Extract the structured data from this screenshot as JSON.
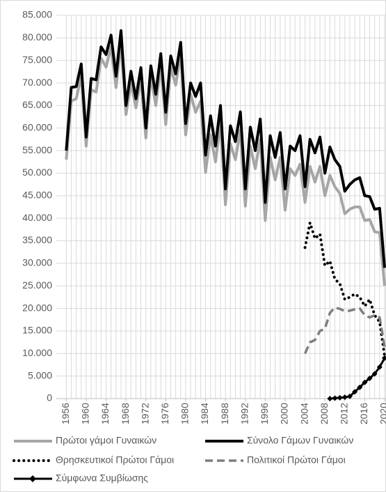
{
  "chart_data": {
    "type": "line",
    "x": [
      1956,
      1957,
      1958,
      1959,
      1960,
      1961,
      1962,
      1963,
      1964,
      1965,
      1966,
      1967,
      1968,
      1969,
      1970,
      1971,
      1972,
      1973,
      1974,
      1975,
      1976,
      1977,
      1978,
      1979,
      1980,
      1981,
      1982,
      1983,
      1984,
      1985,
      1986,
      1987,
      1988,
      1989,
      1990,
      1991,
      1992,
      1993,
      1994,
      1995,
      1996,
      1997,
      1998,
      1999,
      2000,
      2001,
      2002,
      2003,
      2004,
      2005,
      2006,
      2007,
      2008,
      2009,
      2010,
      2011,
      2012,
      2013,
      2014,
      2015,
      2016,
      2017,
      2018,
      2019,
      2020
    ],
    "xlim": [
      1954,
      2020
    ],
    "xticks": [
      1956,
      1960,
      1964,
      1968,
      1972,
      1976,
      1980,
      1984,
      1988,
      1992,
      1996,
      2000,
      2004,
      2008,
      2012,
      2016,
      2020
    ],
    "ylim": [
      0,
      85000
    ],
    "yticks": [
      0,
      {
        "value": 5000,
        "label": "5.000"
      },
      {
        "value": 10000,
        "label": "10.000"
      },
      {
        "value": 15000,
        "label": "15.000"
      },
      {
        "value": 20000,
        "label": "20.000"
      },
      {
        "value": 25000,
        "label": "25.000"
      },
      {
        "value": 30000,
        "label": "30.000"
      },
      {
        "value": 35000,
        "label": "35.000"
      },
      {
        "value": 40000,
        "label": "40.000"
      },
      {
        "value": 45000,
        "label": "45.000"
      },
      {
        "value": 50000,
        "label": "50.000"
      },
      {
        "value": 55000,
        "label": "55.000"
      },
      {
        "value": 60000,
        "label": "60.000"
      },
      {
        "value": 65000,
        "label": "65.000"
      },
      {
        "value": 70000,
        "label": "70.000"
      },
      {
        "value": 75000,
        "label": "75.000"
      },
      {
        "value": 80000,
        "label": "80.000"
      },
      {
        "value": 85000,
        "label": "85.000"
      }
    ],
    "grid": true,
    "series": [
      {
        "name": "Πρώτοι γάμοι Γυναικών",
        "color": "#a6a6a6",
        "style": "solid",
        "values": [
          53000,
          66000,
          66500,
          71500,
          56000,
          68500,
          68000,
          75500,
          73500,
          78000,
          69000,
          79000,
          63000,
          70000,
          64500,
          71000,
          57800,
          71500,
          65000,
          74000,
          60800,
          73500,
          69500,
          76500,
          58500,
          67500,
          63500,
          66000,
          50200,
          58500,
          52500,
          61000,
          43000,
          56500,
          53000,
          59500,
          42700,
          56000,
          51000,
          57500,
          39500,
          53500,
          48500,
          53500,
          41800,
          51000,
          49500,
          52000,
          43500,
          51500,
          48000,
          51500,
          45000,
          49500,
          47000,
          45500,
          41000,
          42000,
          42500,
          42500,
          39500,
          39700,
          37000,
          36800,
          25000
        ]
      },
      {
        "name": "Σύνολο Γάμων Γυναικών",
        "color": "#000000",
        "style": "solid",
        "values": [
          55000,
          69000,
          69200,
          74200,
          58000,
          71000,
          70700,
          78000,
          76300,
          80600,
          71500,
          81600,
          65000,
          72600,
          66500,
          73400,
          60000,
          73800,
          67500,
          76500,
          63500,
          76000,
          72000,
          79000,
          61000,
          70000,
          67000,
          70000,
          54000,
          62700,
          56000,
          65000,
          46500,
          60500,
          57000,
          63600,
          46500,
          60200,
          55000,
          62000,
          43500,
          58300,
          53500,
          59000,
          46500,
          56000,
          55000,
          58300,
          47000,
          57500,
          54500,
          58000,
          50000,
          55800,
          53000,
          51500,
          46000,
          47500,
          48500,
          49000,
          45000,
          44800,
          42000,
          42200,
          29000
        ]
      },
      {
        "name": "Θρησκευτικοί Πρώτοι Γάμοι",
        "color": "#000000",
        "style": "dotted",
        "values": [
          null,
          null,
          null,
          null,
          null,
          null,
          null,
          null,
          null,
          null,
          null,
          null,
          null,
          null,
          null,
          null,
          null,
          null,
          null,
          null,
          null,
          null,
          null,
          null,
          null,
          null,
          null,
          null,
          null,
          null,
          null,
          null,
          null,
          null,
          null,
          null,
          null,
          null,
          null,
          null,
          null,
          null,
          null,
          null,
          null,
          null,
          null,
          null,
          33500,
          39000,
          35500,
          36500,
          29500,
          30500,
          26500,
          25500,
          22000,
          22500,
          23200,
          22500,
          20500,
          22000,
          18500,
          17000,
          9500
        ]
      },
      {
        "name": "Πολιτικοί Πρώτοι Γάμοι",
        "color": "#7f7f7f",
        "style": "dashed",
        "values": [
          null,
          null,
          null,
          null,
          null,
          null,
          null,
          null,
          null,
          null,
          null,
          null,
          null,
          null,
          null,
          null,
          null,
          null,
          null,
          null,
          null,
          null,
          null,
          null,
          null,
          null,
          null,
          null,
          null,
          null,
          null,
          null,
          null,
          null,
          null,
          null,
          null,
          null,
          null,
          null,
          null,
          null,
          null,
          null,
          null,
          null,
          null,
          null,
          10000,
          12500,
          13000,
          15000,
          15500,
          19000,
          20200,
          19900,
          19400,
          19500,
          19800,
          20000,
          18500,
          18000,
          18500,
          18000,
          11500
        ]
      },
      {
        "name": "Σύμφωνα Συμβίωσης",
        "color": "#000000",
        "style": "diamond",
        "values": [
          null,
          null,
          null,
          null,
          null,
          null,
          null,
          null,
          null,
          null,
          null,
          null,
          null,
          null,
          null,
          null,
          null,
          null,
          null,
          null,
          null,
          null,
          null,
          null,
          null,
          null,
          null,
          null,
          null,
          null,
          null,
          null,
          null,
          null,
          null,
          null,
          null,
          null,
          null,
          null,
          null,
          null,
          null,
          null,
          null,
          null,
          null,
          null,
          null,
          null,
          null,
          null,
          null,
          0,
          100,
          200,
          300,
          500,
          1500,
          2500,
          3600,
          4500,
          5500,
          7000,
          9000
        ]
      }
    ]
  }
}
